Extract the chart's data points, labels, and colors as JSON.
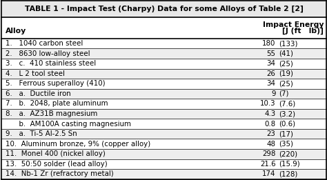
{
  "title": "TABLE 1 - Impact Test (Charpy) Data for some Alloys of Table 2 [2]",
  "col_header_left": "Alloy",
  "col_header_right_line1": "Impact Energy",
  "col_header_right_line2": "[J (ft   lb)]",
  "rows": [
    {
      "label": "1.   1040 carbon steel",
      "j": "180",
      "ftlb": "(133)"
    },
    {
      "label": "2.   8630 low-alloy steel",
      "j": "55",
      "ftlb": "(41)"
    },
    {
      "label": "3.   c.  410 stainless steel",
      "j": "34",
      "ftlb": "(25)"
    },
    {
      "label": "4.   L 2 tool steel",
      "j": "26",
      "ftlb": "(19)"
    },
    {
      "label": "5.   Ferrous superalloy (410)",
      "j": "34",
      "ftlb": "(25)"
    },
    {
      "label": "6.   a.  Ductile iron",
      "j": "9",
      "ftlb": "(7)"
    },
    {
      "label": "7.   b.  2048, plate aluminum",
      "j": "10.3",
      "ftlb": "(7.6)"
    },
    {
      "label": "8.   a.  AZ31B magnesium",
      "j": "4.3",
      "ftlb": "(3.2)"
    },
    {
      "label": "      b.  AM100A casting magnesium",
      "j": "0.8",
      "ftlb": "(0.6)"
    },
    {
      "label": "9.   a.  Ti-5 Al-2.5 Sn",
      "j": "23",
      "ftlb": "(17)"
    },
    {
      "label": "10.  Aluminum bronze, 9% (copper alloy)",
      "j": "48",
      "ftlb": "(35)"
    },
    {
      "label": "11.  Monel 400 (nickel alloy)",
      "j": "298",
      "ftlb": "(220)"
    },
    {
      "label": "13.  50:50 solder (lead alloy)",
      "j": "21.6",
      "ftlb": "(15.9)"
    },
    {
      "label": "14.  Nb-1 Zr (refractory metal)",
      "j": "174",
      "ftlb": "(128)"
    }
  ],
  "bg_white": "#ffffff",
  "bg_light": "#e8e8e8",
  "text_color": "#000000",
  "border_color": "#000000",
  "title_fontsize": 7.8,
  "header_fontsize": 7.8,
  "row_fontsize": 7.4,
  "figsize": [
    4.74,
    2.61
  ],
  "dpi": 100
}
